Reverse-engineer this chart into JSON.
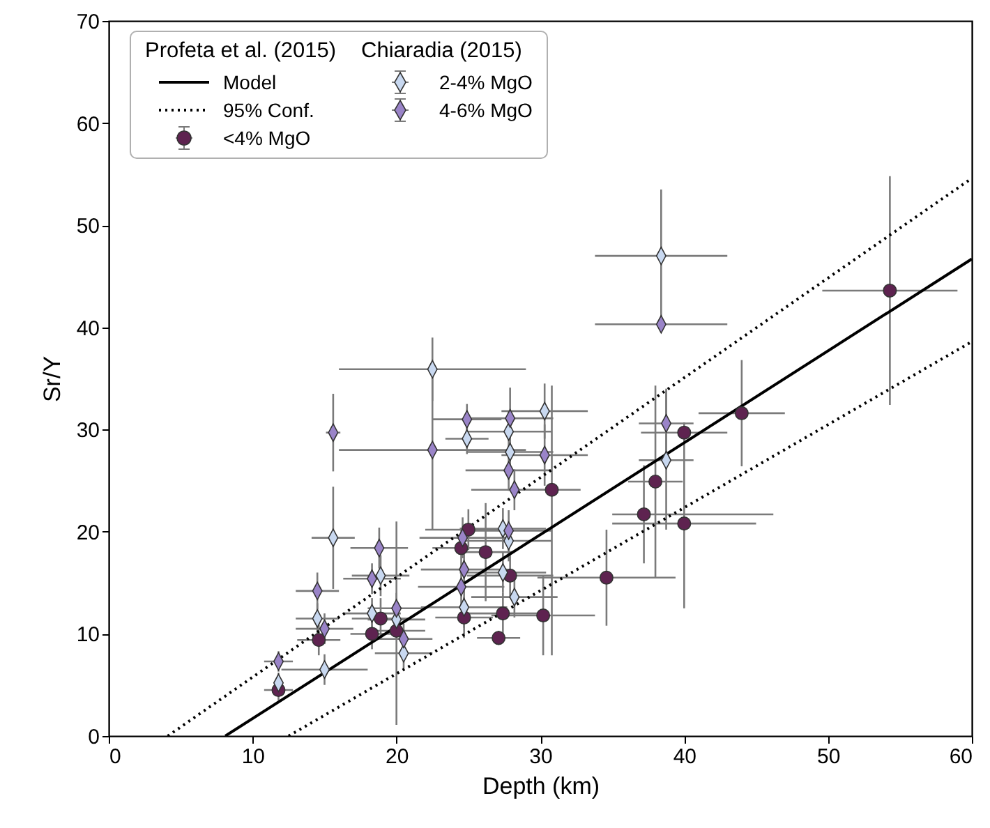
{
  "chart_data": {
    "type": "scatter",
    "xlabel": "Depth (km)",
    "ylabel": "Sr/Y",
    "legend_title": "Profeta et al. (2015)",
    "annotations": [
      "Chiaradia (2015)"
    ],
    "xlim": [
      0,
      60
    ],
    "ylim": [
      0,
      70
    ],
    "xticks": [
      0,
      10,
      20,
      30,
      40,
      50,
      60
    ],
    "yticks": [
      0,
      10,
      20,
      30,
      40,
      50,
      60,
      70
    ],
    "legend": "top left",
    "grid": false,
    "series": [
      {
        "name": "Model",
        "type": "line",
        "color": "#000000",
        "line_style": "solid",
        "marker": "none",
        "x": [
          8.1,
          60
        ],
        "values": [
          0,
          46.7
        ]
      },
      {
        "name": "95% Conf.",
        "type": "line",
        "color": "#000000",
        "line_style": "dotted",
        "marker": "none",
        "x": [
          4.1,
          60,
          null,
          12.5,
          60
        ],
        "values": [
          0,
          54.6,
          null,
          0,
          38.6
        ]
      },
      {
        "name": "<4% MgO",
        "color": "#5e2350",
        "marker": "circle",
        "x": [
          54.3,
          44.0,
          40.0,
          40.0,
          38.0,
          37.2,
          34.6,
          30.8,
          25.0,
          24.5,
          26.2,
          27.9,
          24.7,
          27.4,
          30.2,
          27.1,
          18.9,
          18.3,
          20.0,
          14.6,
          11.8
        ],
        "values": [
          43.6,
          31.6,
          29.7,
          20.8,
          24.9,
          21.7,
          15.5,
          24.1,
          20.2,
          18.4,
          18.0,
          15.7,
          11.6,
          12.0,
          11.8,
          9.6,
          11.5,
          10.0,
          10.3,
          9.4,
          4.5
        ],
        "errors": [
          11.2,
          5.2,
          1,
          8.3,
          9.4,
          4.8,
          4.7,
          [
            7.9,
            34.3
          ],
          2,
          2,
          4.8,
          2,
          2,
          2,
          3.9,
          0.7,
          2,
          1.5,
          [
            1.1,
            21.0
          ],
          1.5,
          1
        ],
        "xerrors": [
          4.7,
          3.0,
          3.0,
          5.0,
          1.9,
          [
            35.0,
            46.2
          ],
          4.8,
          2,
          3,
          2,
          2,
          3,
          2,
          3,
          3.6,
          1.5,
          2,
          1.5,
          2,
          1.5,
          1
        ]
      },
      {
        "name": "2-4% MgO",
        "color": "#c8d8f0",
        "marker": "diamond",
        "x": [
          38.4,
          38.75,
          22.5,
          24.9,
          30.3,
          27.8,
          27.9,
          27.4,
          27.8,
          27.4,
          28.2,
          24.7,
          18.9,
          18.3,
          20.0,
          20.5,
          15.6,
          14.5,
          15.0,
          11.8
        ],
        "values": [
          47.0,
          27.0,
          35.9,
          29.1,
          31.8,
          29.8,
          27.8,
          20.3,
          19.1,
          16.0,
          13.6,
          12.6,
          15.7,
          12.0,
          11.4,
          8.1,
          19.4,
          11.5,
          6.5,
          5.2
        ],
        "errors": [
          6.5,
          6.8,
          3.1,
          1.5,
          2.7,
          2,
          2,
          2,
          2,
          2,
          2,
          2,
          2,
          1.5,
          1.5,
          1.5,
          5,
          1.5,
          1.5,
          1
        ],
        "xerrors": [
          4.6,
          1.9,
          6.5,
          1.5,
          3,
          3,
          3,
          3,
          3,
          3,
          3,
          3,
          2,
          2,
          2,
          2,
          1.5,
          1.5,
          3,
          null
        ]
      },
      {
        "name": "4-6% MgO",
        "color": "#9a84c8",
        "marker": "diamond",
        "x": [
          38.4,
          38.75,
          22.5,
          24.9,
          27.9,
          30.3,
          27.8,
          28.2,
          24.6,
          27.8,
          24.7,
          24.5,
          18.8,
          18.3,
          20.0,
          20.5,
          15.6,
          14.5,
          15.0,
          11.8
        ],
        "values": [
          40.3,
          30.6,
          28.0,
          31.0,
          31.1,
          27.5,
          26.0,
          24.1,
          19.4,
          20.1,
          16.3,
          14.6,
          18.4,
          15.4,
          12.5,
          9.5,
          29.7,
          14.2,
          10.5,
          7.3
        ],
        "errors": [
          0.5,
          3.4,
          7.8,
          1.5,
          3,
          3,
          2,
          2,
          2,
          2,
          2,
          2,
          2,
          1.5,
          1.5,
          1.5,
          3.8,
          1.8,
          1.5,
          1
        ],
        "xerrors": [
          4.6,
          1.9,
          6.5,
          2.4,
          3,
          3,
          3,
          3,
          3,
          3,
          3,
          3,
          2,
          2,
          2,
          2,
          0.5,
          1.5,
          2,
          1
        ]
      }
    ]
  }
}
